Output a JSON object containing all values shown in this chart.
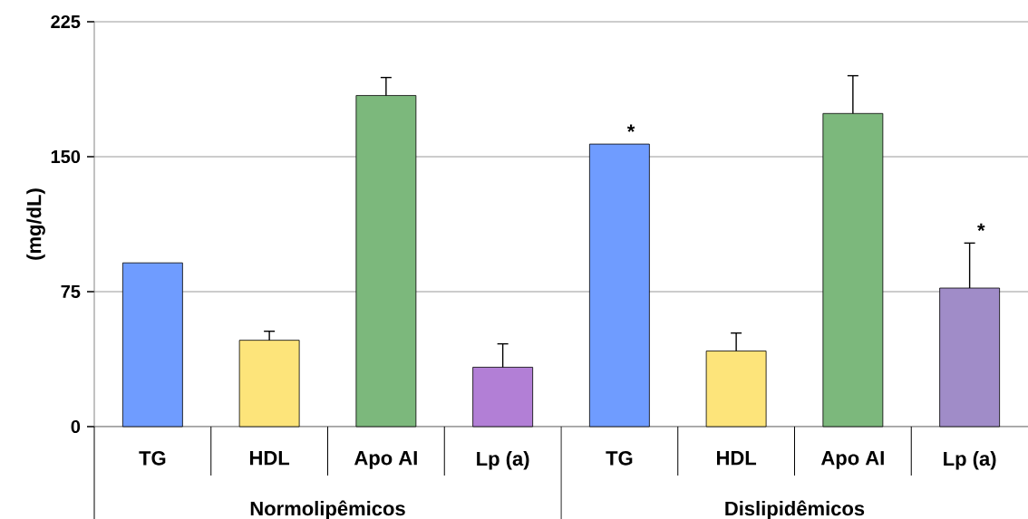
{
  "chart_data": {
    "type": "bar",
    "ylabel": "(mg/dL)",
    "categories": [
      "TG",
      "HDL",
      "Apo AI",
      "Lp (a)",
      "TG",
      "HDL",
      "Apo AI",
      "Lp (a)"
    ],
    "values": [
      91,
      48,
      184,
      33,
      157,
      42,
      174,
      77
    ],
    "errors": [
      null,
      [
        48,
        53
      ],
      [
        184,
        194
      ],
      [
        33,
        46
      ],
      null,
      [
        42,
        52
      ],
      [
        174,
        195
      ],
      [
        77,
        102
      ]
    ],
    "value_labels": [
      null,
      null,
      null,
      null,
      "*",
      null,
      null,
      "*"
    ],
    "colors": [
      "#6f9cff",
      "#fde47a",
      "#7cb87c",
      "#b27fd6",
      "#6f9cff",
      "#fde47a",
      "#7cb87c",
      "#a08cc8"
    ],
    "annotations": [
      "Normolipêmicos",
      "Dislipidêmicos"
    ],
    "ylim": [
      0,
      225
    ],
    "yticks": [
      0,
      75,
      150,
      225
    ],
    "grid": "y"
  }
}
